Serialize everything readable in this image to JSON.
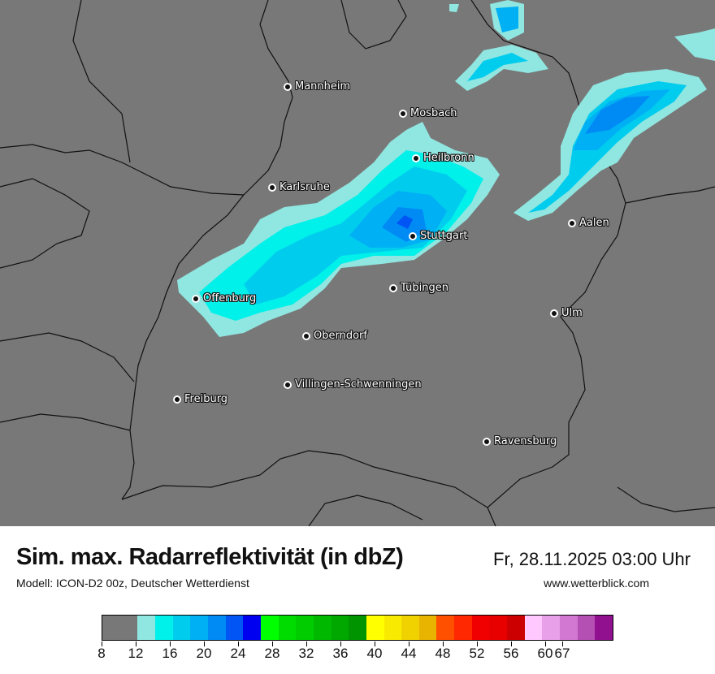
{
  "title": "Sim. max. Radarreflektivität (in dbZ)",
  "subtitle": "Modell: ICON-D2 00z, Deutscher Wetterdienst",
  "datetime": "Fr, 28.11.2025 03:00 Uhr",
  "website": "www.wetterblick.com",
  "map": {
    "background_color": "#787878",
    "cities": [
      {
        "name": "Mannheim"
      },
      {
        "name": "Mosbach"
      },
      {
        "name": "Heilbronn"
      },
      {
        "name": "Karlsruhe"
      },
      {
        "name": "Stuttgart"
      },
      {
        "name": "Aalen"
      },
      {
        "name": "Tübingen"
      },
      {
        "name": "Offenburg"
      },
      {
        "name": "Ulm"
      },
      {
        "name": "Oberndorf"
      },
      {
        "name": "Villingen-Schwenningen"
      },
      {
        "name": "Freiburg"
      },
      {
        "name": "Ravensburg"
      }
    ]
  },
  "legend": {
    "unit": "dbZ",
    "colors": [
      "#787878",
      "#90e6e0",
      "#00f0ea",
      "#00cdee",
      "#00b0f4",
      "#008af4",
      "#0055f4",
      "#0000f0",
      "#00ff00",
      "#00dc00",
      "#00cc00",
      "#00b800",
      "#00a800",
      "#009400",
      "#ffff00",
      "#f8ea00",
      "#f0d200",
      "#e8b400",
      "#ff5000",
      "#ff2800",
      "#f00000",
      "#e80000",
      "#cc0000",
      "#ffc8ff",
      "#e8a0e8",
      "#d278d2",
      "#b450b4",
      "#901090"
    ],
    "tick_labels": [
      "8",
      "12",
      "16",
      "20",
      "24",
      "28",
      "32",
      "36",
      "40",
      "44",
      "48",
      "52",
      "56",
      "60",
      "67"
    ]
  }
}
